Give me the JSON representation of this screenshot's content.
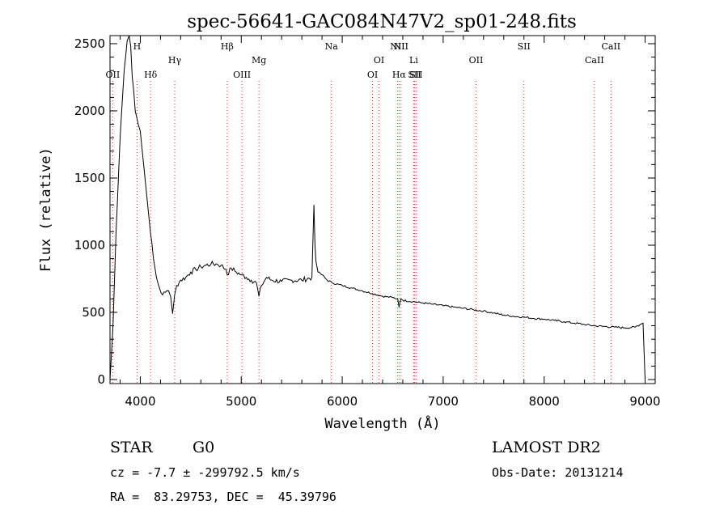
{
  "chart_data": {
    "type": "line",
    "title": "spec-56641-GAC084N47V2_sp01-248.fits",
    "xlabel": "Wavelength (Å)",
    "ylabel": "Flux (relative)",
    "xlim": [
      3700,
      9100
    ],
    "ylim": [
      -30,
      2560
    ],
    "x_ticks": [
      4000,
      5000,
      6000,
      7000,
      8000,
      9000
    ],
    "y_ticks": [
      0,
      500,
      1000,
      1500,
      2000,
      2500
    ],
    "grid": false,
    "series": [
      {
        "x": [
          3700,
          3730,
          3760,
          3800,
          3840,
          3870,
          3890,
          3905,
          3920,
          3935,
          3950,
          3965,
          3980,
          4000,
          4020,
          4040,
          4060,
          4080,
          4100,
          4130,
          4160,
          4190,
          4220,
          4250,
          4280,
          4300,
          4320,
          4340,
          4360,
          4400,
          4450,
          4500,
          4550,
          4600,
          4650,
          4700,
          4750,
          4800,
          4850,
          4861,
          4900,
          4950,
          5000,
          5050,
          5100,
          5150,
          5175,
          5200,
          5250,
          5300,
          5400,
          5500,
          5600,
          5700,
          5720,
          5730,
          5740,
          5760,
          5800,
          5850,
          5900,
          6000,
          6100,
          6200,
          6300,
          6400,
          6500,
          6550,
          6563,
          6580,
          6600,
          6700,
          6800,
          6900,
          7000,
          7100,
          7200,
          7300,
          7400,
          7500,
          7600,
          7700,
          7800,
          7900,
          8000,
          8100,
          8200,
          8300,
          8400,
          8500,
          8600,
          8700,
          8800,
          8900,
          8950,
          8980,
          8990,
          9000
        ],
        "y": [
          0,
          400,
          1100,
          1800,
          2300,
          2520,
          2560,
          2480,
          2250,
          2150,
          2000,
          1950,
          1900,
          1850,
          1700,
          1550,
          1400,
          1250,
          1100,
          900,
          760,
          680,
          630,
          650,
          660,
          620,
          490,
          630,
          700,
          740,
          760,
          800,
          820,
          840,
          850,
          860,
          860,
          850,
          820,
          780,
          830,
          800,
          780,
          760,
          740,
          720,
          620,
          700,
          760,
          740,
          730,
          740,
          740,
          760,
          1300,
          1000,
          880,
          800,
          780,
          740,
          720,
          700,
          680,
          660,
          640,
          620,
          610,
          600,
          540,
          600,
          590,
          580,
          570,
          560,
          550,
          540,
          530,
          520,
          510,
          495,
          480,
          470,
          465,
          455,
          450,
          440,
          430,
          420,
          410,
          400,
          395,
          390,
          385,
          390,
          410,
          420,
          200,
          0
        ]
      }
    ],
    "line_markers": [
      {
        "label": "OII",
        "x": 3727,
        "row": 2
      },
      {
        "label": "H",
        "x": 3968,
        "row": 0
      },
      {
        "label": "Hδ",
        "x": 4102,
        "row": 2
      },
      {
        "label": "Hγ",
        "x": 4341,
        "row": 1
      },
      {
        "label": "Hβ",
        "x": 4861,
        "row": 0
      },
      {
        "label": "OIII",
        "x": 5007,
        "row": 2
      },
      {
        "label": "Mg",
        "x": 5175,
        "row": 1
      },
      {
        "label": "Na",
        "x": 5893,
        "row": 0
      },
      {
        "label": "OI",
        "x": 6300,
        "row": 2
      },
      {
        "label": "OI",
        "x": 6364,
        "row": 1
      },
      {
        "label": "NII",
        "x": 6548,
        "row": 0
      },
      {
        "label": "Hα",
        "x": 6563,
        "row": 2
      },
      {
        "label": "NII",
        "x": 6583,
        "row": 0
      },
      {
        "label": "Li",
        "x": 6708,
        "row": 1
      },
      {
        "label": "SII",
        "x": 6716,
        "row": 2
      },
      {
        "label": "SII",
        "x": 6731,
        "row": 2
      },
      {
        "label": "OII",
        "x": 7325,
        "row": 1
      },
      {
        "label": "SII",
        "x": 7800,
        "row": 0
      },
      {
        "label": "CaII",
        "x": 8498,
        "row": 1
      },
      {
        "label": "CaII",
        "x": 8662,
        "row": 0
      }
    ],
    "marker_color": "#e03030"
  },
  "info": {
    "object_type": "STAR",
    "subclass": "G0",
    "survey": "LAMOST DR2",
    "velocity": "cz = -7.7 ± -299792.5 km/s",
    "obs_date": "Obs-Date: 20131214",
    "coords": "RA =  83.29753, DEC =  45.39796"
  }
}
